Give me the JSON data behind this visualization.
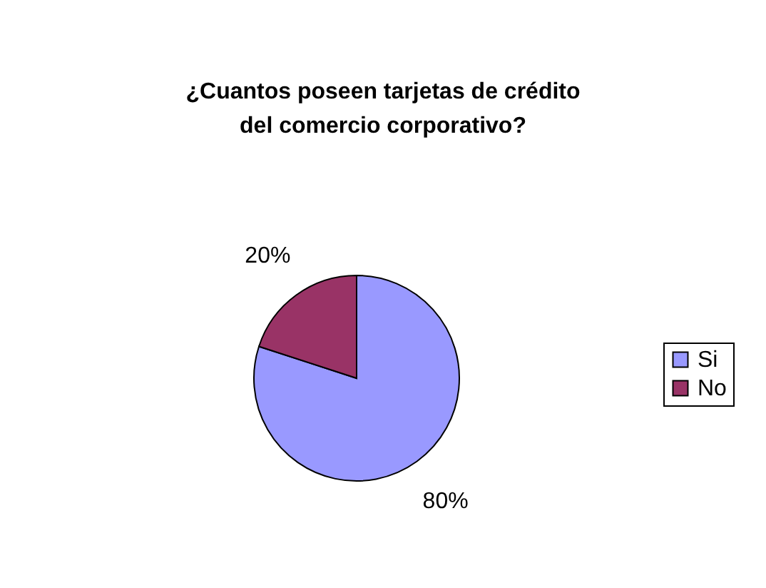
{
  "chart_data": {
    "type": "pie",
    "title": "¿Cuantos poseen tarjetas de crédito del comercio corporativo?",
    "categories": [
      "Si",
      "No"
    ],
    "values": [
      80,
      20
    ],
    "colors": [
      "#9999ff",
      "#993366"
    ],
    "value_labels": [
      "80%",
      "20%"
    ],
    "legend": "right"
  }
}
